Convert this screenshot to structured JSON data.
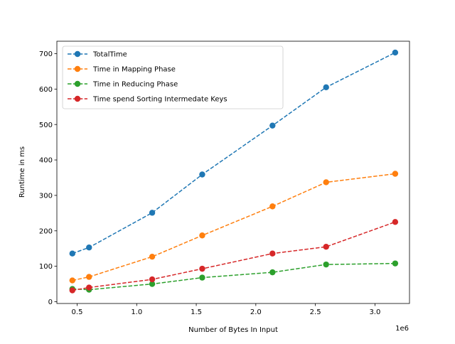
{
  "chart_data": {
    "type": "line",
    "title": "",
    "xlabel": "Number of Bytes In Input",
    "ylabel": "Runtime in ms",
    "x_offset_label": "1e6",
    "x_scale": 1000000,
    "xlim": [
      330000,
      3290000
    ],
    "ylim": [
      -5,
      735
    ],
    "x_ticks": [
      500000,
      1000000,
      1500000,
      2000000,
      2500000,
      3000000
    ],
    "x_tick_labels": [
      "0.5",
      "1.0",
      "1.5",
      "2.0",
      "2.5",
      "3.0"
    ],
    "y_ticks": [
      0,
      100,
      200,
      300,
      400,
      500,
      600,
      700
    ],
    "y_tick_labels": [
      "0",
      "100",
      "200",
      "300",
      "400",
      "500",
      "600",
      "700"
    ],
    "grid": false,
    "legend_position": "upper-left",
    "x": [
      460000,
      600000,
      1130000,
      1550000,
      2140000,
      2590000,
      3170000
    ],
    "series": [
      {
        "name": "TotalTime",
        "color": "#1f77b4",
        "values": [
          136,
          153,
          251,
          359,
          497,
          605,
          703
        ]
      },
      {
        "name": "Time in Mapping Phase",
        "color": "#ff7f0e",
        "values": [
          60,
          70,
          127,
          187,
          269,
          337,
          361
        ]
      },
      {
        "name": "Time in Reducing Phase",
        "color": "#2ca02c",
        "values": [
          36,
          34,
          50,
          68,
          83,
          105,
          108
        ]
      },
      {
        "name": "Time spend Sorting Intermedate Keys",
        "color": "#d62728",
        "values": [
          32,
          40,
          63,
          93,
          136,
          155,
          225
        ]
      }
    ]
  }
}
